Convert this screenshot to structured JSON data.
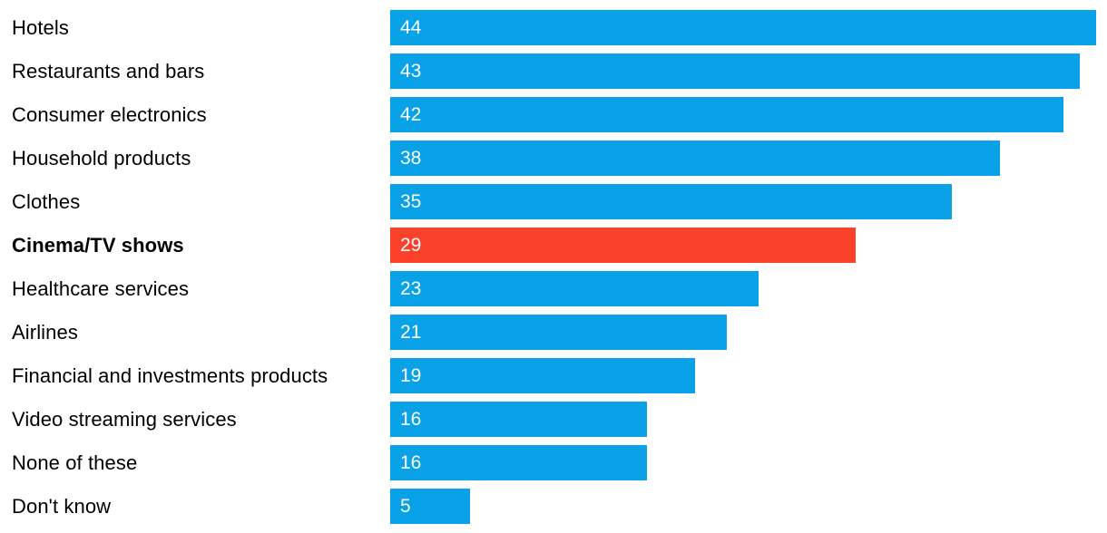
{
  "chart_data": {
    "type": "bar",
    "orientation": "horizontal",
    "title": "",
    "xlabel": "",
    "ylabel": "",
    "grid": false,
    "legend": false,
    "xlim": [
      0,
      44.7
    ],
    "categories": [
      "Hotels",
      "Restaurants and bars",
      "Consumer electronics",
      "Household products",
      "Clothes",
      "Cinema/TV shows",
      "Healthcare services",
      "Airlines",
      "Financial and investments products",
      "Video streaming services",
      "None of these",
      "Don't know"
    ],
    "values": [
      44,
      43,
      42,
      38,
      35,
      29,
      23,
      21,
      19,
      16,
      16,
      5
    ],
    "value_labels": [
      "44",
      "43",
      "42",
      "38",
      "35",
      "29",
      "23",
      "21",
      "19",
      "16",
      "16",
      "5"
    ],
    "highlighted_category": "Cinema/TV shows",
    "highlight_index": 5,
    "bar_color": "#09a2e9",
    "highlight_color": "#fb4129",
    "value_label_color": "#ffffff",
    "category_label_color": "#000000",
    "background_color": "#ffffff"
  }
}
